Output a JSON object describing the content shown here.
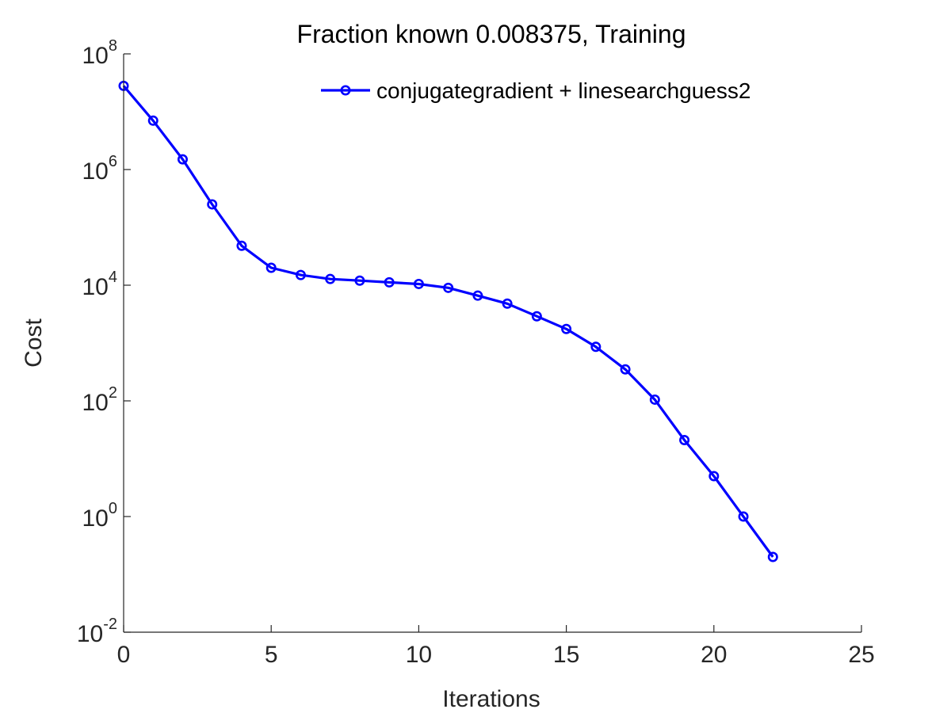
{
  "chart_data": {
    "type": "line",
    "title": "Fraction known 0.008375, Training",
    "xlabel": "Iterations",
    "ylabel": "Cost",
    "xlim": [
      0,
      25
    ],
    "ylim": [
      0.01,
      100000000
    ],
    "yscale": "log",
    "xticks": [
      0,
      5,
      10,
      15,
      20,
      25
    ],
    "xtick_labels": [
      "0",
      "5",
      "10",
      "15",
      "20",
      "25"
    ],
    "yticks": [
      0.01,
      1,
      100,
      10000,
      1000000,
      100000000
    ],
    "ytick_labels": [
      {
        "base": "10",
        "exp": "-2"
      },
      {
        "base": "10",
        "exp": "0"
      },
      {
        "base": "10",
        "exp": "2"
      },
      {
        "base": "10",
        "exp": "4"
      },
      {
        "base": "10",
        "exp": "6"
      },
      {
        "base": "10",
        "exp": "8"
      }
    ],
    "grid": false,
    "legend_position": "top-right",
    "series": [
      {
        "name": "conjugategradient + linesearchguess2",
        "color": "#0000ff",
        "marker": "circle",
        "x": [
          0,
          1,
          2,
          3,
          4,
          5,
          6,
          7,
          8,
          9,
          10,
          11,
          12,
          13,
          14,
          15,
          16,
          17,
          18,
          19,
          20,
          21,
          22
        ],
        "y": [
          28000000,
          7000000,
          1500000,
          250000,
          48000,
          20000,
          15000,
          12800,
          12000,
          11200,
          10500,
          9000,
          6600,
          4800,
          2900,
          1750,
          860,
          350,
          105,
          21,
          5,
          1,
          0.2
        ]
      }
    ]
  }
}
